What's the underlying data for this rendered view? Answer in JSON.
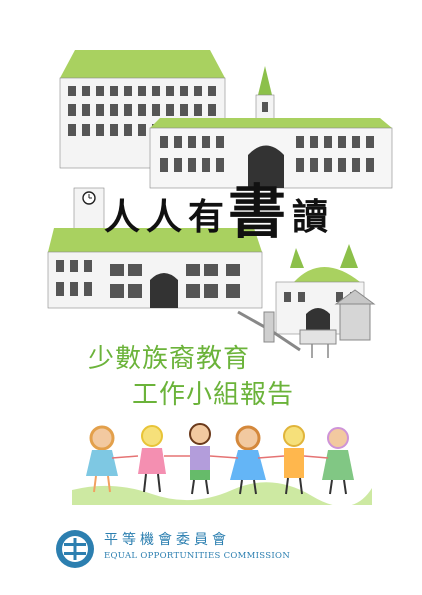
{
  "cover": {
    "title_chars": [
      "人",
      "人",
      "有",
      "書",
      "讀"
    ],
    "subtitle_line1": "少數族裔教育",
    "subtitle_line2": "工作小組報告"
  },
  "organization": {
    "name_zh": "平等機會委員會",
    "name_en": "EQUAL OPPORTUNITIES COMMISSION"
  },
  "colors": {
    "accent_green": "#6bb33a",
    "roof_green": "#a9d160",
    "org_blue": "#2c7fb0"
  }
}
